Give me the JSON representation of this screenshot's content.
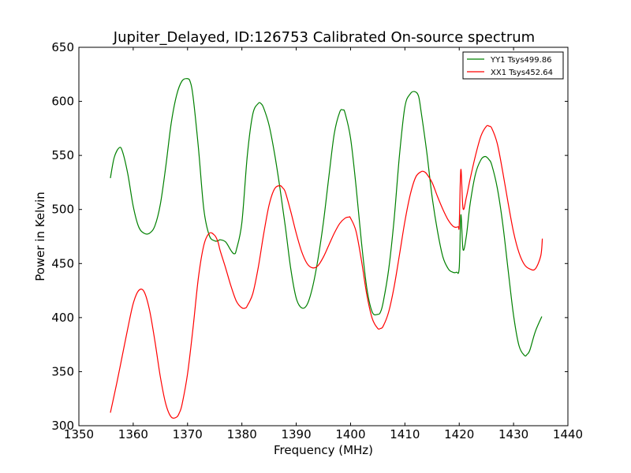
{
  "chart_data": {
    "type": "line",
    "title": "Jupiter_Delayed, ID:126753 Calibrated On-source spectrum",
    "xlabel": "Frequency (MHz)",
    "ylabel": "Power in Kelvin",
    "xlim": [
      1350,
      1440
    ],
    "ylim": [
      300,
      650
    ],
    "xticks": [
      1350,
      1360,
      1370,
      1380,
      1390,
      1400,
      1410,
      1420,
      1430,
      1440
    ],
    "yticks": [
      300,
      350,
      400,
      450,
      500,
      550,
      600,
      650
    ],
    "grid": false,
    "legend_position": "top-right",
    "series": [
      {
        "name": "YY1 Tsys499.86",
        "color": "#008000",
        "x": [
          1355.8,
          1356.5,
          1357.4,
          1358.0,
          1359.0,
          1360.0,
          1361.0,
          1362.0,
          1363.0,
          1364.0,
          1365.0,
          1366.0,
          1367.0,
          1368.0,
          1369.0,
          1370.0,
          1370.5,
          1371.0,
          1372.0,
          1373.0,
          1374.0,
          1375.0,
          1375.6,
          1376.0,
          1377.0,
          1378.0,
          1378.6,
          1379.0,
          1380.0,
          1381.0,
          1382.0,
          1383.0,
          1383.5,
          1384.0,
          1385.0,
          1386.0,
          1387.0,
          1388.0,
          1389.0,
          1390.0,
          1391.0,
          1392.0,
          1393.0,
          1394.0,
          1395.0,
          1396.0,
          1397.0,
          1398.0,
          1398.6,
          1399.0,
          1400.0,
          1401.0,
          1402.0,
          1403.0,
          1404.0,
          1405.0,
          1405.5,
          1406.0,
          1407.0,
          1408.0,
          1409.0,
          1410.0,
          1411.0,
          1411.8,
          1412.5,
          1413.0,
          1414.0,
          1415.0,
          1416.0,
          1417.0,
          1418.0,
          1418.8,
          1419.5,
          1420.0,
          1420.3,
          1420.7,
          1421.3,
          1422.0,
          1423.0,
          1424.0,
          1424.8,
          1425.5,
          1426.0,
          1427.0,
          1428.0,
          1429.0,
          1430.0,
          1431.0,
          1432.0,
          1432.5,
          1433.0,
          1434.0,
          1435.2
        ],
        "y": [
          529,
          548,
          557,
          554,
          533,
          503,
          484,
          478,
          478,
          485,
          505,
          540,
          580,
          606,
          619,
          621,
          618,
          605,
          557,
          500,
          476,
          471,
          471,
          472,
          470,
          462,
          459,
          463,
          488,
          550,
          588,
          598,
          598,
          594,
          578,
          552,
          520,
          484,
          445,
          418,
          409,
          412,
          428,
          454,
          488,
          530,
          570,
          590,
          592,
          589,
          566,
          522,
          470,
          427,
          405,
          403,
          405,
          414,
          444,
          490,
          550,
          595,
          607,
          609,
          605,
          590,
          554,
          512,
          480,
          456,
          445,
          442,
          442,
          446,
          495,
          463,
          475,
          505,
          533,
          546,
          549,
          546,
          541,
          520,
          487,
          444,
          402,
          374,
          365,
          366,
          370,
          387,
          401
        ]
      },
      {
        "name": "XX1 Tsys452.64",
        "color": "#ff0000",
        "x": [
          1355.8,
          1357.0,
          1358.0,
          1359.0,
          1360.0,
          1361.0,
          1362.0,
          1363.0,
          1364.0,
          1365.0,
          1366.0,
          1367.0,
          1368.0,
          1368.5,
          1369.0,
          1370.0,
          1371.0,
          1372.0,
          1373.0,
          1374.0,
          1375.0,
          1375.6,
          1376.0,
          1377.0,
          1378.0,
          1379.0,
          1380.0,
          1380.7,
          1381.0,
          1382.0,
          1383.0,
          1384.0,
          1385.0,
          1386.0,
          1387.0,
          1387.5,
          1388.0,
          1389.0,
          1390.0,
          1391.0,
          1392.0,
          1393.0,
          1394.0,
          1395.0,
          1396.0,
          1397.0,
          1398.0,
          1399.0,
          1399.7,
          1400.0,
          1401.0,
          1402.0,
          1403.0,
          1404.0,
          1405.0,
          1405.5,
          1406.0,
          1407.0,
          1408.0,
          1409.0,
          1410.0,
          1411.0,
          1412.0,
          1413.0,
          1413.5,
          1414.0,
          1415.0,
          1416.0,
          1417.0,
          1418.0,
          1419.0,
          1419.8,
          1420.0,
          1420.3,
          1420.7,
          1421.3,
          1422.0,
          1423.0,
          1424.0,
          1425.0,
          1425.5,
          1426.0,
          1427.0,
          1428.0,
          1429.0,
          1430.0,
          1431.0,
          1432.0,
          1433.0,
          1434.0,
          1435.0,
          1435.3
        ],
        "y": [
          312,
          340,
          365,
          390,
          413,
          425,
          424,
          407,
          378,
          345,
          320,
          308,
          308,
          312,
          320,
          348,
          390,
          437,
          467,
          478,
          476,
          470,
          462,
          446,
          429,
          415,
          409,
          409,
          411,
          422,
          446,
          477,
          504,
          519,
          522,
          520,
          516,
          498,
          478,
          461,
          450,
          446,
          448,
          456,
          467,
          478,
          487,
          492,
          493,
          492,
          480,
          453,
          421,
          399,
          390,
          390,
          392,
          405,
          428,
          458,
          489,
          514,
          530,
          535,
          535,
          533,
          525,
          512,
          500,
          490,
          484,
          484,
          486,
          537,
          501,
          511,
          528,
          550,
          568,
          577,
          577,
          575,
          561,
          535,
          506,
          479,
          460,
          449,
          445,
          445,
          457,
          473
        ]
      }
    ]
  }
}
